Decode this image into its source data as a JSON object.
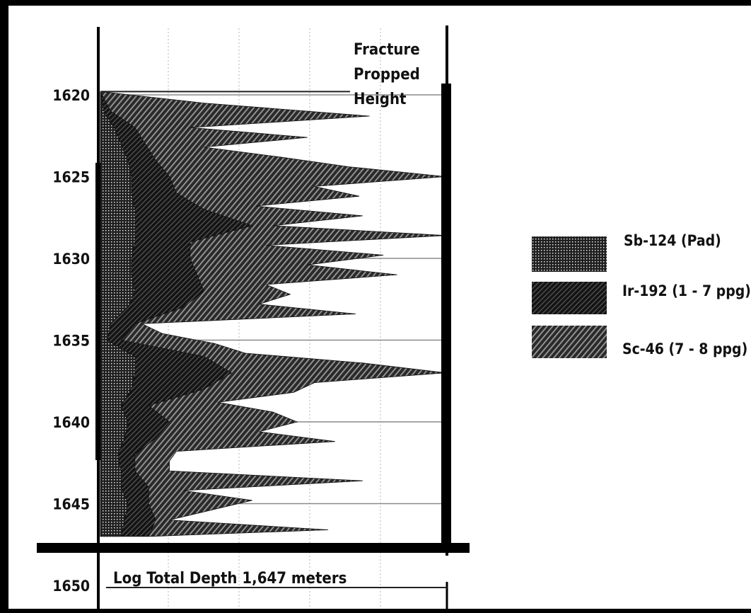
{
  "chart_data": {
    "type": "area",
    "title": "",
    "xlabel": "",
    "ylabel": "",
    "ylim": [
      1619,
      1651
    ],
    "y_ticks": [
      1620,
      1625,
      1630,
      1635,
      1640,
      1645,
      1650
    ],
    "grid": true,
    "legend_position": "right",
    "annotations": {
      "fracture": [
        "Fracture",
        "Propped",
        "Height"
      ],
      "total_depth": "Log Total Depth 1,647 meters",
      "fracture_top": 1619.8,
      "total_depth_value": 1647
    },
    "series": [
      {
        "name": "Sb-124 (Pad)",
        "depth": [
          1619.8,
          1621,
          1622,
          1623,
          1624,
          1625,
          1626,
          1627,
          1628,
          1629,
          1630,
          1631,
          1632,
          1633,
          1634,
          1635,
          1636,
          1637,
          1638,
          1639,
          1640,
          1641,
          1642,
          1643,
          1644,
          1645,
          1646,
          1647
        ],
        "values": [
          0,
          1,
          4,
          6,
          8,
          9,
          9,
          10,
          10,
          10,
          9,
          9,
          10,
          8,
          3,
          2,
          10,
          10,
          9,
          6,
          8,
          7,
          5,
          6,
          6,
          8,
          7,
          6
        ]
      },
      {
        "name": "Ir-192 (1 - 7 ppg)",
        "depth": [
          1619.8,
          1621,
          1622,
          1623,
          1624,
          1625,
          1626,
          1627,
          1628,
          1629,
          1630,
          1631,
          1632,
          1633,
          1634,
          1635,
          1636,
          1637,
          1638,
          1639,
          1640,
          1641,
          1642,
          1643,
          1644,
          1645,
          1646,
          1647
        ],
        "values": [
          0,
          3,
          10,
          13,
          16,
          20,
          22,
          30,
          44,
          26,
          26,
          28,
          30,
          24,
          10,
          6,
          30,
          38,
          30,
          14,
          20,
          16,
          10,
          10,
          14,
          14,
          16,
          14
        ]
      },
      {
        "name": "Sc-46 (7 - 8 ppg)",
        "depth": [
          1619.8,
          1620.5,
          1621.3,
          1622,
          1622.6,
          1623.2,
          1623.8,
          1624.4,
          1625,
          1625.6,
          1626.2,
          1626.8,
          1627.4,
          1628,
          1628.6,
          1629.2,
          1629.8,
          1630.4,
          1631,
          1631.6,
          1632.2,
          1632.8,
          1633.4,
          1634,
          1634.6,
          1635.2,
          1635.8,
          1636.4,
          1637,
          1637.6,
          1638.2,
          1638.8,
          1639.4,
          1640,
          1640.6,
          1641.2,
          1641.8,
          1642.4,
          1643,
          1643.6,
          1644.2,
          1644.8,
          1645.4,
          1646,
          1646.6,
          1647
        ],
        "values": [
          0,
          30,
          78,
          26,
          60,
          30,
          52,
          72,
          100,
          62,
          75,
          45,
          76,
          50,
          100,
          48,
          82,
          60,
          86,
          48,
          55,
          46,
          74,
          12,
          18,
          33,
          42,
          76,
          100,
          62,
          56,
          34,
          50,
          57,
          46,
          68,
          22,
          20,
          20,
          76,
          24,
          44,
          32,
          20,
          66,
          15
        ]
      }
    ]
  }
}
